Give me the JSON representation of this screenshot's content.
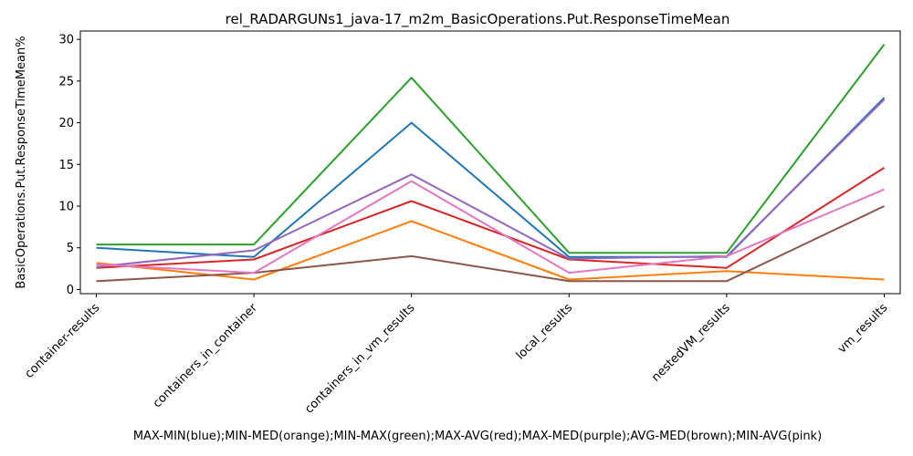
{
  "chart_data": {
    "type": "line",
    "title": "rel_RADARGUNs1_java-17_m2m_BasicOperations.Put.ResponseTimeMean",
    "xlabel": "MAX-MIN(blue);MIN-MED(orange);MIN-MAX(green);MAX-AVG(red);MAX-MED(purple);AVG-MED(brown);MIN-AVG(pink)",
    "ylabel": "BasicOperations.Put.ResponseTimeMean%",
    "categories": [
      "container-results",
      "containers_in_container",
      "containers_in_vm_results",
      "local_results",
      "nestedVM_results",
      "vm_results"
    ],
    "ylim": [
      -0.5,
      31
    ],
    "yticks": [
      0,
      5,
      10,
      15,
      20,
      25,
      30
    ],
    "grid": false,
    "series": [
      {
        "color": "#1f77b4",
        "values": [
          5.0,
          3.9,
          20.0,
          3.9,
          3.9,
          23.0
        ]
      },
      {
        "color": "#ff7f0e",
        "values": [
          3.2,
          1.2,
          8.2,
          1.2,
          2.2,
          1.2
        ]
      },
      {
        "color": "#2ca02c",
        "values": [
          5.4,
          5.4,
          25.4,
          4.4,
          4.4,
          29.4
        ]
      },
      {
        "color": "#d62728",
        "values": [
          2.6,
          3.6,
          10.6,
          3.6,
          2.6,
          14.6
        ]
      },
      {
        "color": "#9467bd",
        "values": [
          2.7,
          4.7,
          13.8,
          3.7,
          4.0,
          22.8
        ]
      },
      {
        "color": "#8c564b",
        "values": [
          1.0,
          2.0,
          4.0,
          1.0,
          1.0,
          10.0
        ]
      },
      {
        "color": "#e377c2",
        "values": [
          3.0,
          2.0,
          13.0,
          2.0,
          4.0,
          12.0
        ]
      }
    ]
  }
}
